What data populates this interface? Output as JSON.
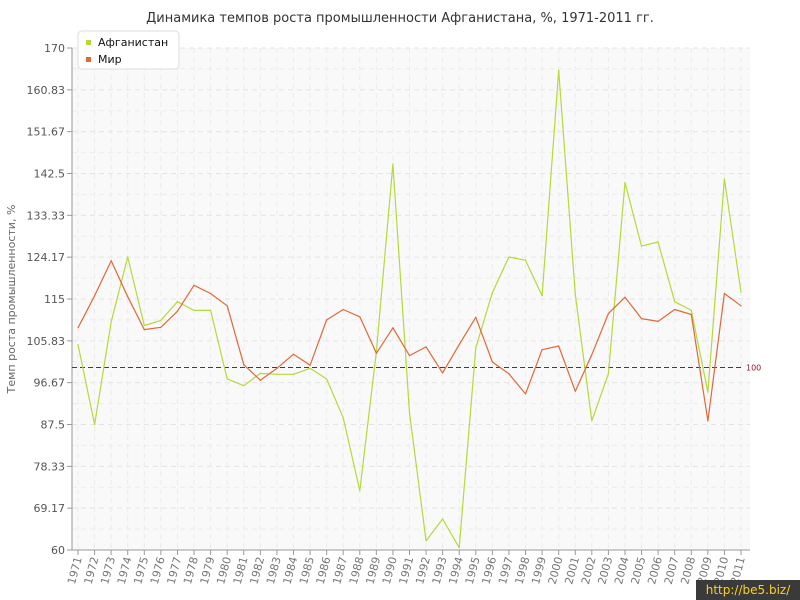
{
  "chart_data": {
    "type": "line",
    "title": "Динамика темпов роста промышленности Афганистана, %, 1971-2011 гг.",
    "ylabel": "Темп роста промышленности, %",
    "xlabel": "",
    "ylim": [
      60,
      170
    ],
    "yticks": [
      "60",
      "69.17",
      "78.33",
      "87.5",
      "96.67",
      "105.83",
      "115",
      "124.17",
      "133.33",
      "142.5",
      "151.67",
      "160.83",
      "170"
    ],
    "categories": [
      "1971",
      "1972",
      "1973",
      "1974",
      "1975",
      "1976",
      "1977",
      "1978",
      "1979",
      "1980",
      "1981",
      "1982",
      "1983",
      "1984",
      "1985",
      "1986",
      "1987",
      "1988",
      "1989",
      "1990",
      "1991",
      "1992",
      "1993",
      "1994",
      "1995",
      "1996",
      "1997",
      "1998",
      "1999",
      "2000",
      "2001",
      "2002",
      "2003",
      "2004",
      "2005",
      "2006",
      "2007",
      "2008",
      "2009",
      "2010",
      "2011"
    ],
    "reference_line": {
      "value": 100,
      "label": "100",
      "color": "#8b1a2a"
    },
    "legend_position": "top-left",
    "grid": true,
    "series": [
      {
        "name": "Афганистан",
        "color": "#b5d93a",
        "values": [
          105,
          87.5,
          110,
          124.2,
          109.2,
          110.3,
          114.4,
          112.5,
          112.5,
          97.5,
          96,
          98.7,
          98.5,
          98.5,
          99.8,
          97.5,
          89,
          73,
          103.5,
          144.6,
          90,
          62,
          66.8,
          60.5,
          104.3,
          116.4,
          124.2,
          123.5,
          115.7,
          165.1,
          116,
          88.3,
          98.6,
          140.5,
          126.6,
          127.5,
          114.4,
          112.5,
          94.6,
          141.3,
          116.5
        ]
      },
      {
        "name": "Мир",
        "color": "#e0683a",
        "values": [
          108.7,
          115.7,
          123.4,
          115.5,
          108.3,
          108.8,
          112.3,
          118,
          116.2,
          113.5,
          100.6,
          97.2,
          99.8,
          102.9,
          100.5,
          110.4,
          112.7,
          111.1,
          103.1,
          108.7,
          102.6,
          104.5,
          98.8,
          105,
          111,
          101.2,
          98.6,
          94.2,
          103.9,
          104.7,
          94.8,
          102.8,
          111.8,
          115.4,
          110.7,
          110.1,
          112.7,
          111.6,
          88.3,
          116.2,
          113.5
        ]
      }
    ]
  },
  "watermark": "http://be5.biz/"
}
